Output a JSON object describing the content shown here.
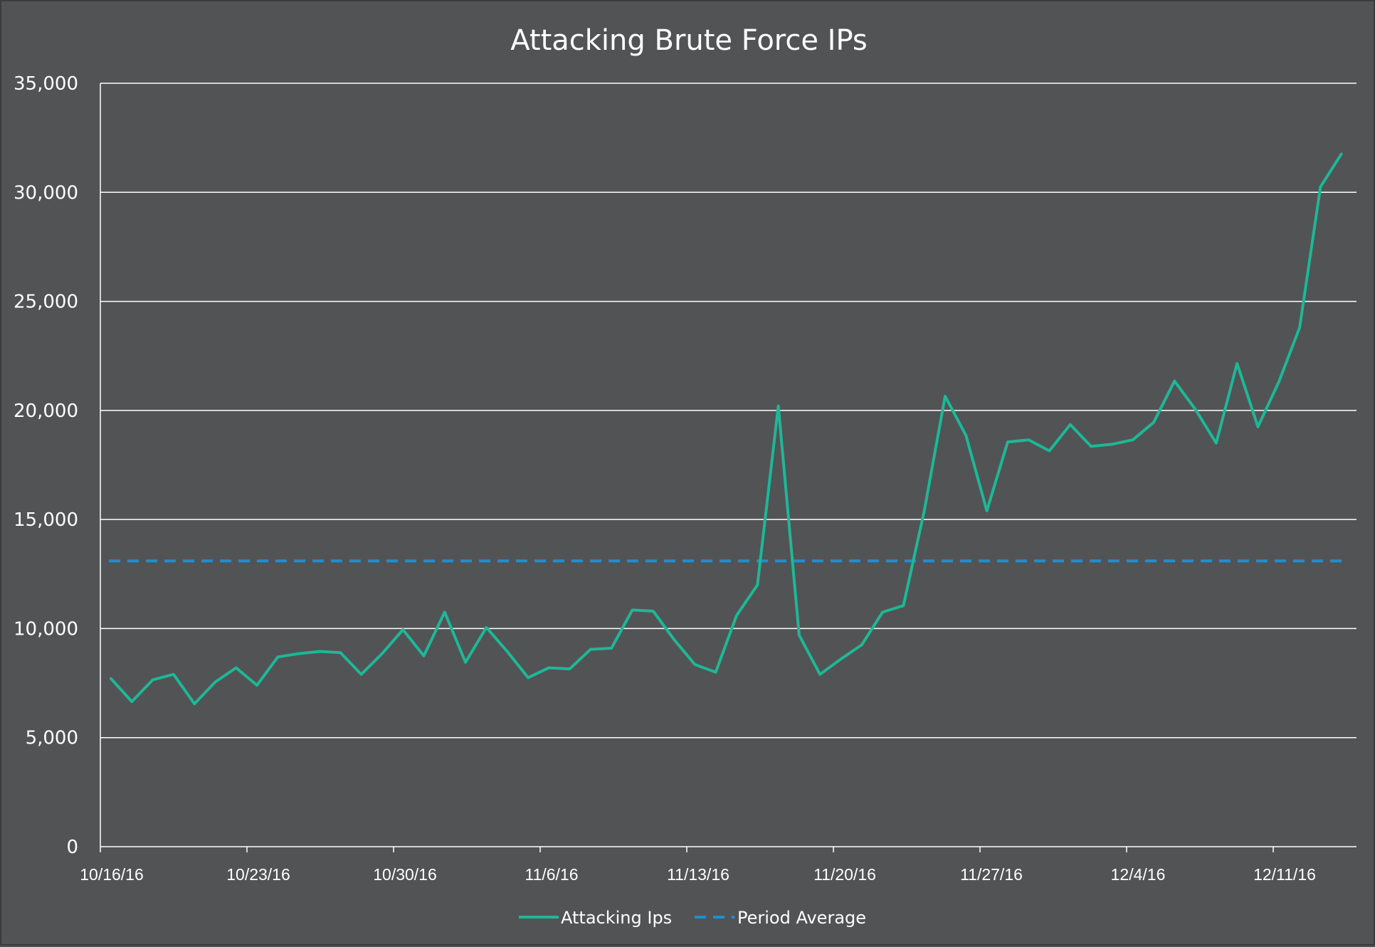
{
  "chart_data": {
    "type": "line",
    "title": "Attacking Brute Force IPs",
    "xlabel": "",
    "ylabel": "",
    "ylim": [
      0,
      35000
    ],
    "yticks": [
      0,
      5000,
      10000,
      15000,
      20000,
      25000,
      30000,
      35000
    ],
    "ytick_labels": [
      "0",
      "5,000",
      "10,000",
      "15,000",
      "20,000",
      "25,000",
      "30,000",
      "35,000"
    ],
    "x_start": "10/16/16",
    "x_tick_labels": [
      "10/16/16",
      "10/23/16",
      "10/30/16",
      "11/6/16",
      "11/13/16",
      "11/20/16",
      "11/27/16",
      "12/4/16",
      "12/11/16"
    ],
    "grid": "horizontal",
    "legend_position": "bottom",
    "series": [
      {
        "name": "Attacking Ips",
        "color": "#1db897",
        "style": "solid",
        "values": [
          7700,
          6650,
          7650,
          7900,
          6550,
          7550,
          8200,
          7400,
          8700,
          8850,
          8950,
          8900,
          7900,
          8850,
          9950,
          8750,
          10750,
          8450,
          10050,
          8950,
          7750,
          8200,
          8150,
          9050,
          9100,
          10850,
          10800,
          9500,
          8350,
          8000,
          10600,
          12000,
          20200,
          9700,
          7900,
          8600,
          9250,
          10750,
          11050,
          15400,
          20650,
          18850,
          15400,
          18550,
          18650,
          18150,
          19350,
          18350,
          18450,
          18650,
          19450,
          21350,
          20050,
          18500,
          22150,
          19250,
          21300,
          23800,
          30250,
          31750
        ]
      },
      {
        "name": "Period Average",
        "color": "#1e8fd0",
        "style": "dashed",
        "value": 13100
      }
    ]
  }
}
